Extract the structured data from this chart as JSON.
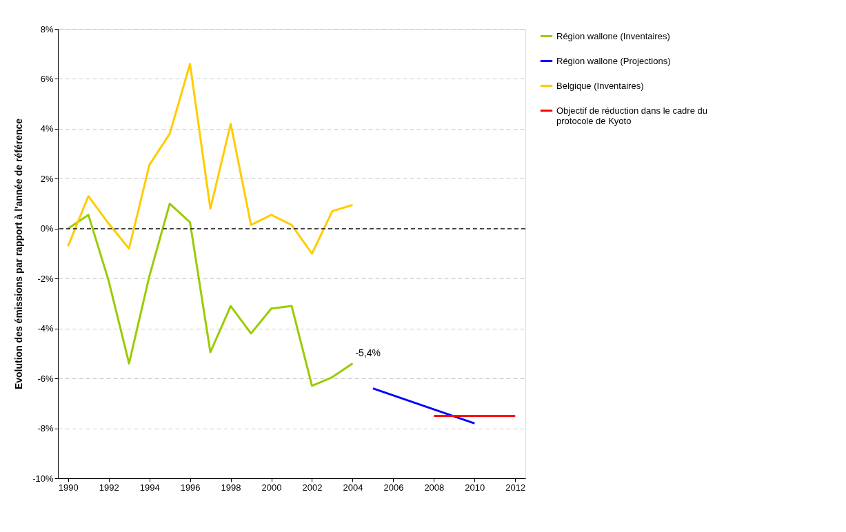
{
  "chart_data": {
    "type": "line",
    "ylabel": "Evolution des émissions par rapport à l'année de référence",
    "x": [
      1990,
      1991,
      1992,
      1993,
      1994,
      1995,
      1996,
      1997,
      1998,
      1999,
      2000,
      2001,
      2002,
      2003,
      2004
    ],
    "series": [
      {
        "name": "Région wallone (Inventaires)",
        "color": "#99cc00",
        "values": [
          0,
          0.55,
          -2.1,
          -5.4,
          -1.9,
          1.0,
          0.25,
          -4.95,
          -3.1,
          -4.2,
          -3.2,
          -3.1,
          -6.3,
          -5.95,
          -5.4
        ]
      },
      {
        "name": "Région wallone (Projections)",
        "color": "#0000ff",
        "x": [
          2005,
          2010
        ],
        "values": [
          -6.4,
          -7.8
        ]
      },
      {
        "name": "Belgique (Inventaires)",
        "color": "#ffcc00",
        "values": [
          -0.7,
          1.3,
          0.2,
          -0.8,
          2.55,
          3.8,
          6.6,
          0.8,
          4.2,
          0.15,
          0.55,
          0.15,
          -1.0,
          0.7,
          0.95
        ]
      },
      {
        "name": "Objectif de réduction dans le cadre du protocole de Kyoto",
        "color": "#ff0000",
        "x": [
          2008,
          2012
        ],
        "values": [
          -7.5,
          -7.5
        ]
      }
    ],
    "annotations": [
      {
        "text": "-5,4%",
        "x": 2004,
        "y": -5.4
      }
    ],
    "ref_lines": [
      {
        "axis": "y",
        "value": 0,
        "color": "#000000",
        "line_style": "dashed"
      }
    ],
    "xlim": [
      1989.5,
      2012.5
    ],
    "xticks": [
      1990,
      1992,
      1994,
      1996,
      1998,
      2000,
      2002,
      2004,
      2006,
      2008,
      2010,
      2012
    ],
    "ylim": [
      -10,
      8
    ],
    "yticks": [
      {
        "value": -10,
        "label": "-10%"
      },
      {
        "value": -8,
        "label": "-8%"
      },
      {
        "value": -6,
        "label": "-6%"
      },
      {
        "value": -4,
        "label": "-4%"
      },
      {
        "value": -2,
        "label": "-2%"
      },
      {
        "value": 0,
        "label": "0%"
      },
      {
        "value": 2,
        "label": "2%"
      },
      {
        "value": 4,
        "label": "4%"
      },
      {
        "value": 6,
        "label": "6%"
      },
      {
        "value": 8,
        "label": "8%"
      }
    ],
    "grid": "y",
    "legend": "right",
    "line_style": "solid",
    "marker": "none"
  }
}
